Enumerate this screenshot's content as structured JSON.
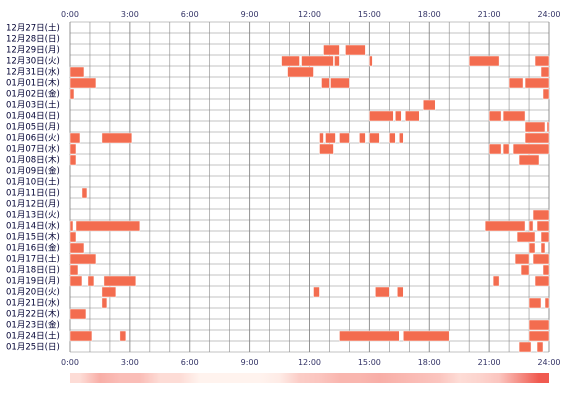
{
  "chart_data": {
    "type": "heatmap",
    "title": "",
    "x_unit": "hour",
    "xlim": [
      0,
      24
    ],
    "x_ticks": [
      "0:00",
      "3:00",
      "6:00",
      "9:00",
      "12:00",
      "15:00",
      "18:00",
      "21:00",
      "24:00"
    ],
    "grid": true,
    "colors": {
      "bar": "#f36c4f",
      "bar_edge": "#ffffff",
      "grid": "#888888",
      "label": "#000033",
      "tick": "#333366",
      "strip_low": "#fff3ee",
      "strip_high": "#f05a50"
    },
    "rows": [
      {
        "label": "12月27日(土)",
        "segments": []
      },
      {
        "label": "12月28日(日)",
        "segments": []
      },
      {
        "label": "12月29日(月)",
        "segments": [
          [
            12.7,
            13.5
          ],
          [
            13.8,
            14.8
          ]
        ]
      },
      {
        "label": "12月30日(火)",
        "segments": [
          [
            10.6,
            11.5
          ],
          [
            11.6,
            13.2
          ],
          [
            13.25,
            13.5
          ],
          [
            15.0,
            15.15
          ],
          [
            20.0,
            21.5
          ],
          [
            23.3,
            24.0
          ]
        ]
      },
      {
        "label": "12月31日(水)",
        "segments": [
          [
            0.0,
            0.7
          ],
          [
            10.9,
            12.2
          ],
          [
            23.6,
            24.0
          ]
        ]
      },
      {
        "label": "01月01日(木)",
        "segments": [
          [
            0.0,
            1.3
          ],
          [
            12.6,
            13.0
          ],
          [
            13.05,
            14.0
          ],
          [
            22.0,
            22.7
          ],
          [
            22.8,
            24.0
          ]
        ]
      },
      {
        "label": "01月02日(金)",
        "segments": [
          [
            0.0,
            0.2
          ],
          [
            23.7,
            24.0
          ]
        ]
      },
      {
        "label": "01月03日(土)",
        "segments": [
          [
            17.7,
            18.3
          ]
        ]
      },
      {
        "label": "01月04日(日)",
        "segments": [
          [
            15.0,
            16.2
          ],
          [
            16.3,
            16.6
          ],
          [
            16.8,
            17.5
          ],
          [
            21.0,
            21.6
          ],
          [
            21.7,
            22.8
          ]
        ]
      },
      {
        "label": "01月05日(月)",
        "segments": [
          [
            22.8,
            23.8
          ],
          [
            23.9,
            24.0
          ]
        ]
      },
      {
        "label": "01月06日(火)",
        "segments": [
          [
            0.0,
            0.5
          ],
          [
            1.6,
            3.1
          ],
          [
            12.5,
            12.7
          ],
          [
            12.8,
            13.3
          ],
          [
            13.5,
            14.0
          ],
          [
            14.5,
            14.8
          ],
          [
            15.0,
            15.5
          ],
          [
            16.0,
            16.3
          ],
          [
            16.5,
            16.7
          ],
          [
            22.8,
            24.0
          ]
        ]
      },
      {
        "label": "01月07日(水)",
        "segments": [
          [
            0.0,
            0.3
          ],
          [
            12.5,
            13.2
          ],
          [
            21.0,
            21.6
          ],
          [
            21.7,
            22.0
          ],
          [
            22.2,
            24.0
          ]
        ]
      },
      {
        "label": "01月08日(木)",
        "segments": [
          [
            0.0,
            0.3
          ],
          [
            22.5,
            23.5
          ]
        ]
      },
      {
        "label": "01月09日(金)",
        "segments": []
      },
      {
        "label": "01月10日(土)",
        "segments": []
      },
      {
        "label": "01月11日(日)",
        "segments": [
          [
            0.6,
            0.85
          ]
        ]
      },
      {
        "label": "01月12日(月)",
        "segments": []
      },
      {
        "label": "01月13日(火)",
        "segments": [
          [
            23.2,
            24.0
          ]
        ]
      },
      {
        "label": "01月14日(水)",
        "segments": [
          [
            0.0,
            0.15
          ],
          [
            0.3,
            3.5
          ],
          [
            20.8,
            22.8
          ],
          [
            23.0,
            23.2
          ],
          [
            23.4,
            24.0
          ]
        ]
      },
      {
        "label": "01月15日(木)",
        "segments": [
          [
            0.0,
            0.3
          ],
          [
            22.4,
            23.3
          ],
          [
            23.6,
            24.0
          ]
        ]
      },
      {
        "label": "01月16日(金)",
        "segments": [
          [
            0.0,
            0.7
          ],
          [
            23.0,
            23.3
          ],
          [
            23.6,
            23.8
          ]
        ]
      },
      {
        "label": "01月17日(土)",
        "segments": [
          [
            0.0,
            1.3
          ],
          [
            22.3,
            23.0
          ],
          [
            23.2,
            24.0
          ]
        ]
      },
      {
        "label": "01月18日(日)",
        "segments": [
          [
            0.0,
            0.4
          ],
          [
            22.6,
            23.0
          ],
          [
            23.7,
            24.0
          ]
        ]
      },
      {
        "label": "01月19日(月)",
        "segments": [
          [
            0.0,
            0.6
          ],
          [
            0.9,
            1.2
          ],
          [
            1.7,
            3.3
          ],
          [
            21.2,
            21.5
          ],
          [
            23.3,
            24.0
          ]
        ]
      },
      {
        "label": "01月20日(火)",
        "segments": [
          [
            1.6,
            2.3
          ],
          [
            12.2,
            12.5
          ],
          [
            15.3,
            16.0
          ],
          [
            16.4,
            16.7
          ]
        ]
      },
      {
        "label": "01月21日(水)",
        "segments": [
          [
            1.6,
            1.85
          ],
          [
            23.0,
            23.6
          ],
          [
            23.8,
            24.0
          ]
        ]
      },
      {
        "label": "01月22日(木)",
        "segments": [
          [
            0.0,
            0.8
          ]
        ]
      },
      {
        "label": "01月23日(金)",
        "segments": [
          [
            23.0,
            24.0
          ]
        ]
      },
      {
        "label": "01月24日(土)",
        "segments": [
          [
            0.0,
            1.1
          ],
          [
            2.5,
            2.8
          ],
          [
            13.5,
            16.5
          ],
          [
            16.7,
            19.0
          ],
          [
            23.0,
            24.0
          ]
        ]
      },
      {
        "label": "01月25日(日)",
        "segments": [
          [
            22.5,
            23.1
          ],
          [
            23.4,
            23.7
          ]
        ]
      }
    ],
    "density": [
      0.15,
      0.45,
      0.35,
      0.35,
      0.15,
      0.15,
      0.0,
      0.0,
      0.0,
      0.0,
      0.05,
      0.25,
      0.3,
      0.4,
      0.4,
      0.45,
      0.4,
      0.35,
      0.3,
      0.15,
      0.2,
      0.3,
      0.65,
      1.0
    ]
  }
}
